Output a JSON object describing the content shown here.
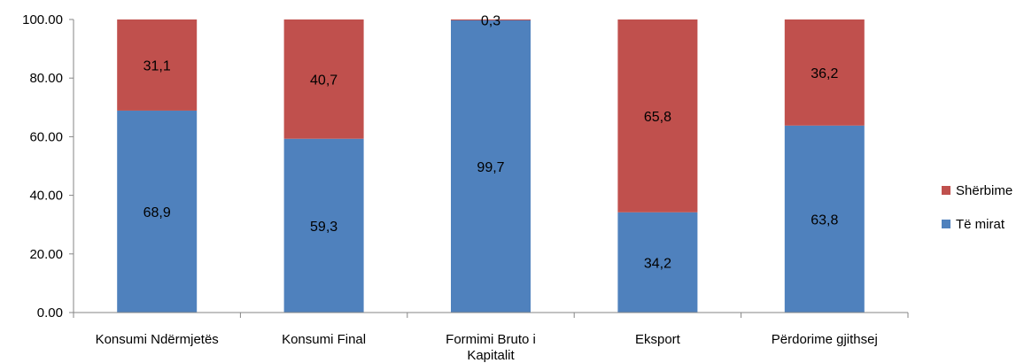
{
  "chart_data": {
    "type": "bar",
    "stacked": true,
    "categories": [
      "Konsumi Ndërmjetës",
      "Konsumi Final",
      "Formimi Bruto i Kapitalit",
      "Eksport",
      "Përdorime gjithsej"
    ],
    "category_lines": [
      [
        "Konsumi Ndërmjetës"
      ],
      [
        "Konsumi Final"
      ],
      [
        "Formimi Bruto i",
        "Kapitalit"
      ],
      [
        "Eksport"
      ],
      [
        "Përdorime gjithsej"
      ]
    ],
    "series": [
      {
        "name": "Të mirat",
        "color": "#4F81BD",
        "values": [
          68.9,
          59.3,
          99.7,
          34.2,
          63.8
        ],
        "labels": [
          "68,9",
          "59,3",
          "99,7",
          "34,2",
          "63,8"
        ]
      },
      {
        "name": "Shërbime",
        "color": "#C0504D",
        "values": [
          31.1,
          40.7,
          0.3,
          65.8,
          36.2
        ],
        "labels": [
          "31,1",
          "40,7",
          "0,3",
          "65,8",
          "36,2"
        ]
      }
    ],
    "ylim": [
      0,
      100
    ],
    "yticks": [
      "0.00",
      "20.00",
      "40.00",
      "60.00",
      "80.00",
      "100.00"
    ],
    "legend": {
      "position": "right",
      "order": [
        "Shërbime",
        "Të mirat"
      ]
    },
    "grid": false,
    "title": "",
    "xlabel": "",
    "ylabel": ""
  }
}
